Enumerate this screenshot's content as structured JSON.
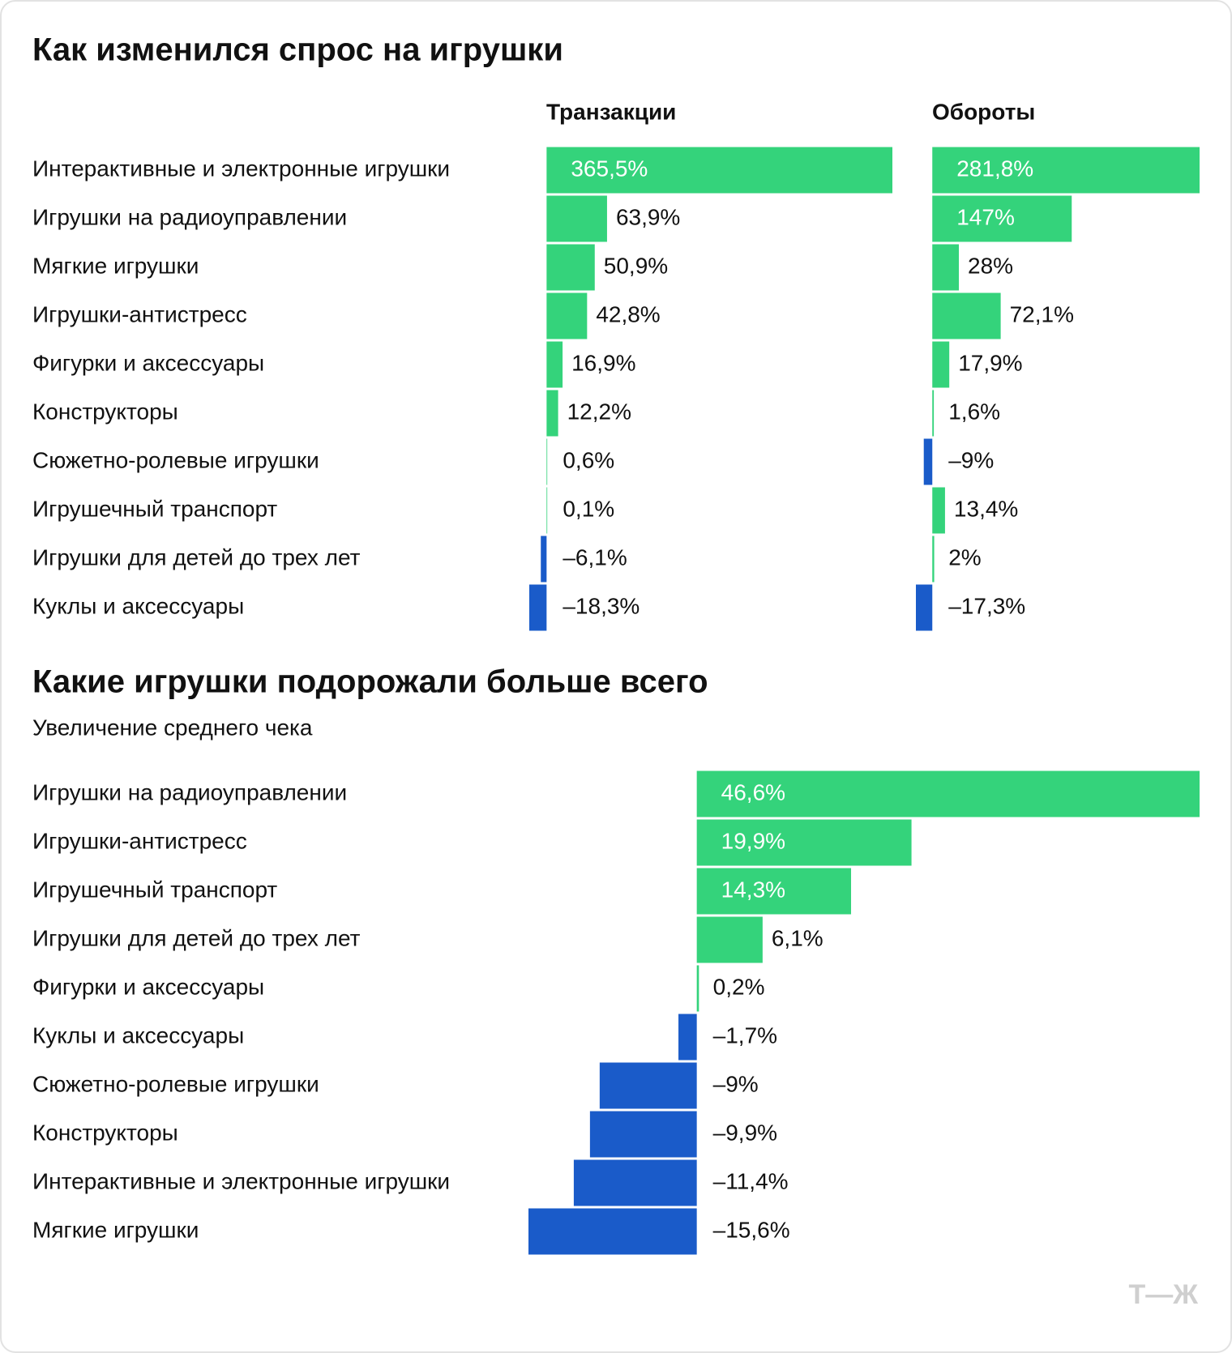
{
  "chart_data": [
    {
      "type": "bar",
      "orientation": "horizontal",
      "title": "Как изменился спрос на игрушки",
      "categories": [
        "Интерактивные и электронные игрушки",
        "Игрушки на радиоуправлении",
        "Мягкие игрушки",
        "Игрушки-антистресс",
        "Фигурки и аксессуары",
        "Конструкторы",
        "Сюжетно-ролевые игрушки",
        "Игрушечный транспорт",
        "Игрушки для детей до трех лет",
        "Куклы и аксессуары"
      ],
      "series": [
        {
          "name": "Транзакции",
          "color": "#34d37b",
          "negative_color": "#1a5bc9",
          "values": [
            365.5,
            63.9,
            50.9,
            42.8,
            16.9,
            12.2,
            0.6,
            0.1,
            -6.1,
            -18.3
          ],
          "value_labels": [
            "365,5%",
            "63,9%",
            "50,9%",
            "42,8%",
            "16,9%",
            "12,2%",
            "0,6%",
            "0,1%",
            "–6,1%",
            "–18,3%"
          ]
        },
        {
          "name": "Обороты",
          "color": "#34d37b",
          "negative_color": "#1a5bc9",
          "values": [
            281.8,
            147,
            28,
            72.1,
            17.9,
            1.6,
            -9,
            13.4,
            2,
            -17.3
          ],
          "value_labels": [
            "281,8%",
            "147%",
            "28%",
            "72,1%",
            "17,9%",
            "1,6%",
            "–9%",
            "13,4%",
            "2%",
            "–17,3%"
          ]
        }
      ]
    },
    {
      "type": "bar",
      "orientation": "horizontal",
      "title": "Какие игрушки подорожали больше всего",
      "subtitle": "Увеличение среднего чека",
      "categories": [
        "Игрушки на радиоуправлении",
        "Игрушки-антистресс",
        "Игрушечный транспорт",
        "Игрушки для детей до трех лет",
        "Фигурки и аксессуары",
        "Куклы и аксессуары",
        "Сюжетно-ролевые игрушки",
        "Конструкторы",
        "Интерактивные и электронные игрушки",
        "Мягкие игрушки"
      ],
      "color": "#34d37b",
      "negative_color": "#1a5bc9",
      "values": [
        46.6,
        19.9,
        14.3,
        6.1,
        0.2,
        -1.7,
        -9,
        -9.9,
        -11.4,
        -15.6
      ],
      "value_labels": [
        "46,6%",
        "19,9%",
        "14,3%",
        "6,1%",
        "0,2%",
        "–1,7%",
        "–9%",
        "–9,9%",
        "–11,4%",
        "–15,6%"
      ]
    }
  ],
  "brand": "Т—Ж"
}
